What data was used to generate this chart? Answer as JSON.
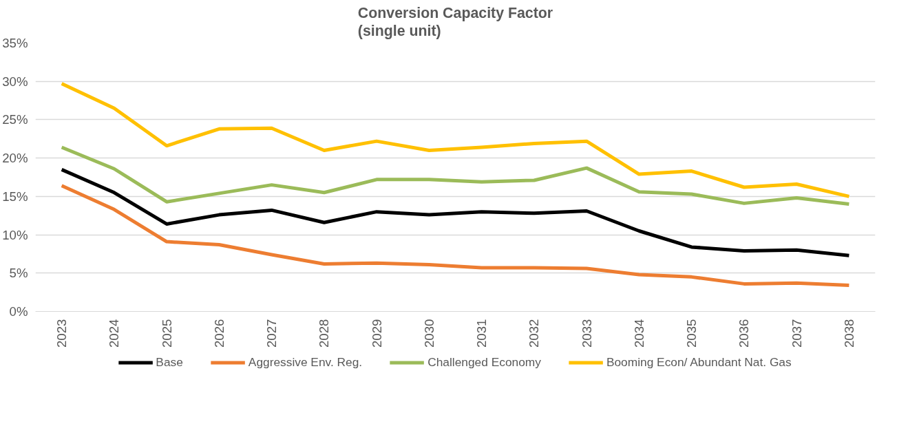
{
  "chart_data": {
    "type": "line",
    "title": "Conversion Capacity Factor\n(single unit)",
    "categories": [
      "2023",
      "2024",
      "2025",
      "2026",
      "2027",
      "2028",
      "2029",
      "2030",
      "2031",
      "2032",
      "2033",
      "2034",
      "2035",
      "2036",
      "2037",
      "2038"
    ],
    "series": [
      {
        "name": "Base",
        "color": "#000000",
        "values": [
          18.5,
          15.5,
          11.4,
          12.6,
          13.2,
          11.6,
          13.0,
          12.6,
          13.0,
          12.8,
          13.1,
          10.5,
          8.4,
          7.9,
          8.0,
          7.3
        ]
      },
      {
        "name": "Aggressive Env. Reg.",
        "color": "#ed7d31",
        "values": [
          16.4,
          13.3,
          9.1,
          8.7,
          7.4,
          6.2,
          6.3,
          6.1,
          5.7,
          5.7,
          5.6,
          4.8,
          4.5,
          3.6,
          3.7,
          3.4
        ]
      },
      {
        "name": "Challenged Economy",
        "color": "#9bbb59",
        "values": [
          21.4,
          18.6,
          14.3,
          15.4,
          16.5,
          15.5,
          17.2,
          17.2,
          16.9,
          17.1,
          18.7,
          15.6,
          15.3,
          14.1,
          14.8,
          14.0
        ]
      },
      {
        "name": "Booming Econ/ Abundant Nat. Gas",
        "color": "#ffc000",
        "values": [
          29.7,
          26.5,
          21.6,
          23.8,
          23.9,
          21.0,
          22.2,
          21.0,
          21.4,
          21.9,
          22.2,
          17.9,
          18.3,
          16.2,
          16.6,
          15.0
        ]
      }
    ],
    "ylim": [
      0,
      35
    ],
    "yticks": [
      {
        "value": 0,
        "label": "0%"
      },
      {
        "value": 5,
        "label": "5%"
      },
      {
        "value": 10,
        "label": "10%"
      },
      {
        "value": 15,
        "label": "15%"
      },
      {
        "value": 20,
        "label": "20%"
      },
      {
        "value": 25,
        "label": "25%"
      },
      {
        "value": 30,
        "label": "30%"
      },
      {
        "value": 35,
        "label": "35%"
      }
    ],
    "grid": "y",
    "legend": "bottom",
    "marker": "none",
    "line_style": "solid"
  }
}
